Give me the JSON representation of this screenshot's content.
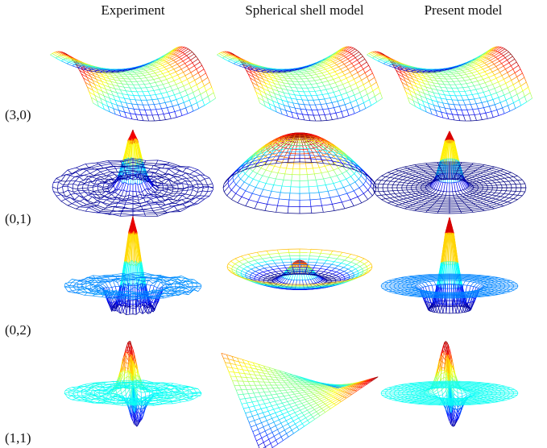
{
  "columns": [
    "Experiment",
    "Spherical shell model",
    "Present model"
  ],
  "rows": [
    "(3,0)",
    "(0,1)",
    "(0,2)",
    "(1,1)"
  ]
}
